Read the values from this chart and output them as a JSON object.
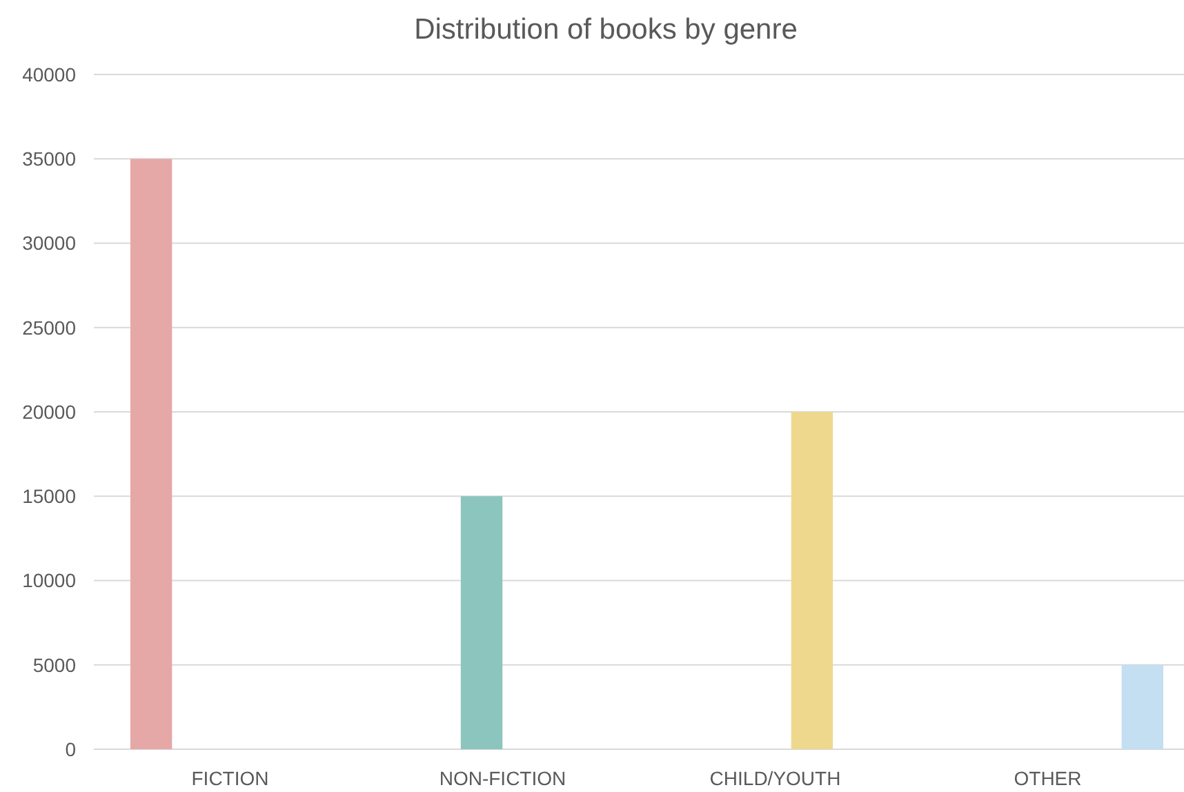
{
  "chart_data": {
    "type": "bar",
    "title": "Distribution of books by genre",
    "categories": [
      "FICTION",
      "NON-FICTION",
      "CHILD/YOUTH",
      "OTHER"
    ],
    "series": [
      {
        "color": "#e6a8a7",
        "values": [
          35000,
          null,
          null,
          null
        ]
      },
      {
        "color": "#8cc5bd",
        "values": [
          null,
          15000,
          null,
          null
        ]
      },
      {
        "color": "#eed88e",
        "values": [
          null,
          null,
          20000,
          null
        ]
      },
      {
        "color": "#c4def2",
        "values": [
          null,
          null,
          null,
          5000
        ]
      }
    ],
    "ylim": [
      0,
      40000
    ],
    "yticks": [
      0,
      5000,
      10000,
      15000,
      20000,
      25000,
      30000,
      35000,
      40000
    ],
    "grid": "y"
  }
}
